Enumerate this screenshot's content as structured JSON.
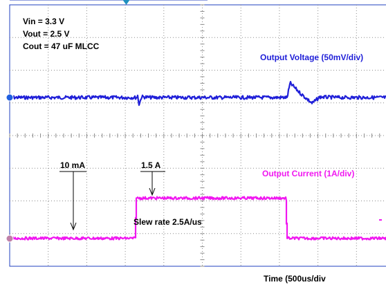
{
  "chart_data": {
    "type": "line",
    "title": "",
    "notes": [
      "Vin = 3.3 V",
      "Vout = 2.5 V",
      "Cout = 47 uF MLCC"
    ],
    "xlabel": "Time (500us/div",
    "x_divisions": 10,
    "y_divisions": 8,
    "grid": true,
    "series": [
      {
        "name": "Output Voltage (50mV/div)",
        "color": "#1f1fd8",
        "x": [
          0,
          3.1,
          3.3,
          3.32,
          3.36,
          3.42,
          3.55,
          3.7,
          7.2,
          7.28,
          7.55,
          7.85,
          8.05,
          8.25,
          8.6,
          10
        ],
        "y": [
          0,
          0,
          0,
          0.08,
          -0.28,
          0.03,
          0.01,
          0,
          0,
          0.55,
          0.15,
          -0.22,
          0.02,
          0.01,
          0,
          0
        ]
      },
      {
        "name": "Output Current (1A/div)",
        "color": "#f018f0",
        "x": [
          0,
          3.27,
          3.3,
          7.18,
          7.21,
          10
        ],
        "y": [
          0.01,
          0.01,
          1.5,
          1.5,
          0.01,
          0.01
        ]
      }
    ],
    "annotations": [
      {
        "text": "10 mA"
      },
      {
        "text": "1.5 A"
      },
      {
        "text": "Slew rate 2.5A/us"
      }
    ]
  }
}
